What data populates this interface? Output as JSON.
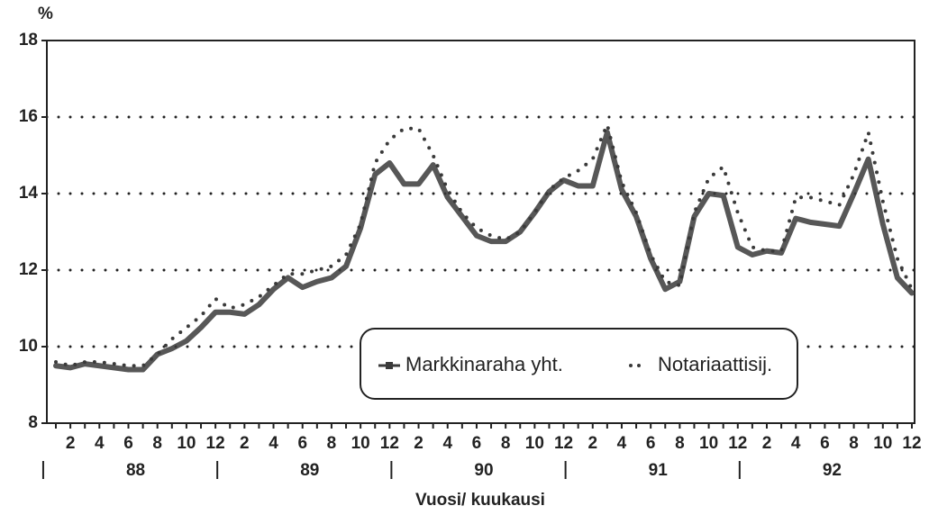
{
  "chart_data": {
    "type": "line",
    "y_label": "%",
    "x_label": "Vuosi/ kuukausi",
    "categories": [
      null,
      "2",
      null,
      "4",
      null,
      "6",
      null,
      "8",
      null,
      "10",
      null,
      "12",
      null,
      "2",
      null,
      "4",
      null,
      "6",
      null,
      "8",
      null,
      "10",
      null,
      "12",
      null,
      "2",
      null,
      "4",
      null,
      "6",
      null,
      "8",
      null,
      "10",
      null,
      "12",
      null,
      "2",
      null,
      "4",
      null,
      "6",
      null,
      "8",
      null,
      "10",
      null,
      "12",
      null,
      "2",
      null,
      "4",
      null,
      "6",
      null,
      "8",
      null,
      "10",
      null,
      "12"
    ],
    "groups": [
      "88",
      "89",
      "90",
      "91",
      "92"
    ],
    "series": [
      {
        "name": "Markkinaraha yht.",
        "color": "#3a3a3a",
        "style": "solid",
        "values": [
          9.5,
          9.45,
          9.55,
          9.5,
          9.45,
          9.4,
          9.4,
          9.8,
          9.95,
          10.15,
          10.5,
          10.9,
          10.9,
          10.85,
          11.1,
          11.5,
          11.8,
          11.55,
          11.7,
          11.8,
          12.1,
          13.1,
          14.5,
          14.8,
          14.25,
          14.25,
          14.75,
          13.9,
          13.4,
          12.9,
          12.75,
          12.75,
          13.0,
          13.5,
          14.05,
          14.35,
          14.2,
          14.2,
          15.6,
          14.1,
          13.4,
          12.3,
          11.5,
          11.7,
          13.4,
          14.0,
          13.95,
          12.6,
          12.4,
          12.5,
          12.45,
          13.35,
          13.25,
          13.2,
          13.15,
          14.0,
          14.9,
          13.2,
          11.8,
          11.4
        ]
      },
      {
        "name": "Notariaattisij.",
        "color": "#3a3a3a",
        "style": "dotted",
        "values": [
          9.6,
          9.5,
          9.6,
          9.6,
          9.55,
          9.5,
          9.5,
          9.8,
          10.2,
          10.5,
          10.8,
          11.25,
          11.0,
          11.1,
          11.3,
          11.6,
          11.9,
          11.9,
          12.0,
          12.1,
          12.4,
          13.2,
          14.8,
          15.4,
          15.7,
          15.7,
          15.0,
          14.1,
          13.5,
          13.1,
          12.9,
          12.8,
          13.0,
          13.5,
          14.1,
          14.4,
          14.6,
          14.9,
          15.8,
          14.3,
          13.5,
          12.4,
          11.7,
          11.6,
          13.5,
          14.4,
          14.7,
          13.5,
          12.6,
          12.5,
          12.5,
          13.9,
          13.9,
          13.8,
          13.7,
          14.5,
          15.6,
          13.8,
          12.3,
          11.5
        ]
      }
    ],
    "ylim": [
      8,
      18
    ],
    "yticks": [
      8,
      10,
      12,
      14,
      16,
      18
    ],
    "grid": true
  }
}
